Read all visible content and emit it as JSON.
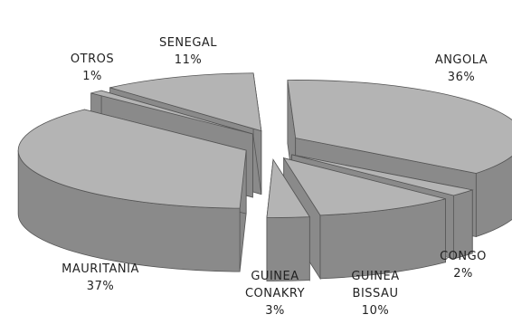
{
  "chart_data": {
    "type": "pie",
    "style": "3d-exploded",
    "slices": [
      {
        "label": "ANGOLA",
        "value": 36,
        "value_label": "36%"
      },
      {
        "label": "CONGO",
        "value": 2,
        "value_label": "2%"
      },
      {
        "label": "GUINEA BISSAU",
        "value": 10,
        "value_label": "10%"
      },
      {
        "label": "GUINEA CONAKRY",
        "value": 3,
        "value_label": "3%"
      },
      {
        "label": "MAURITANIA",
        "value": 37,
        "value_label": "37%"
      },
      {
        "label": "OTROS",
        "value": 1,
        "value_label": "1%"
      },
      {
        "label": "SENEGAL",
        "value": 11,
        "value_label": "11%"
      }
    ],
    "colors": {
      "top": "#b4b4b4",
      "side": "#8a8a8a",
      "edge": "#555555"
    },
    "legend": "none"
  }
}
